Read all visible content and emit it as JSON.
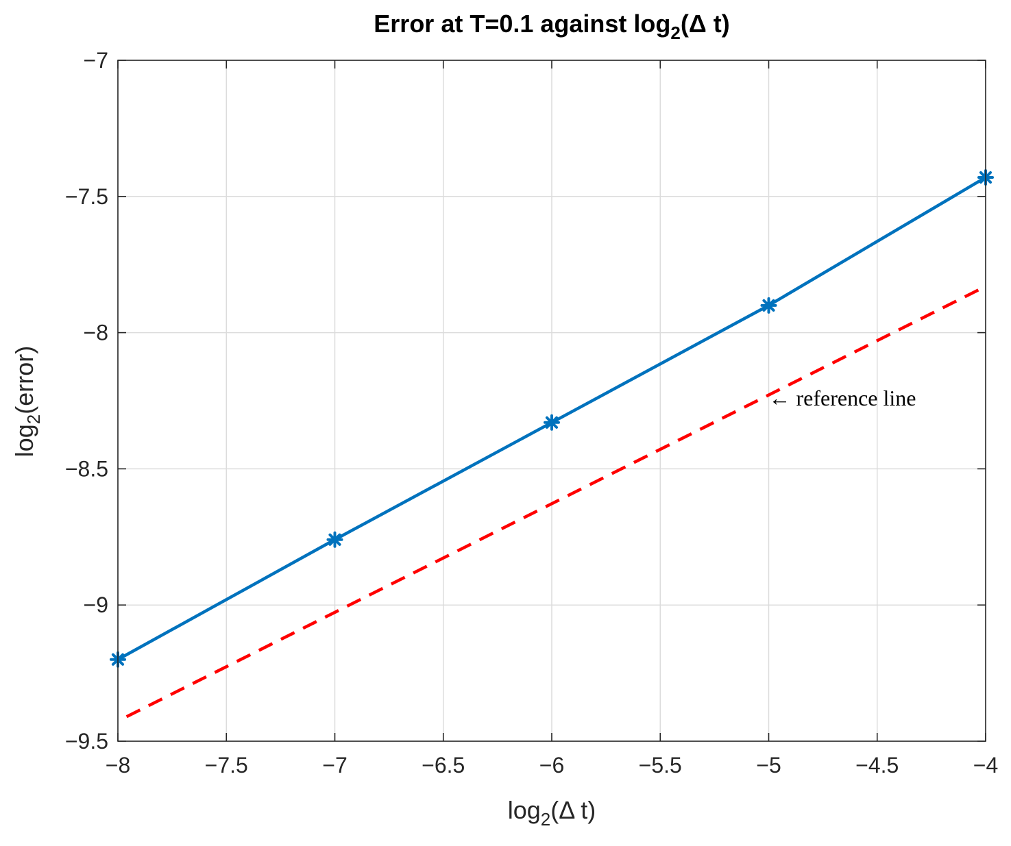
{
  "chart_data": {
    "type": "line",
    "title": {
      "main": "Error at T=0.1 against log",
      "sub": "2",
      "tail": "(Δ t)"
    },
    "xlabel": {
      "main": "log",
      "sub": "2",
      "tail": "(Δ t)"
    },
    "ylabel": {
      "main": "log",
      "sub": "2",
      "tail": "(error)"
    },
    "xlim": [
      -8,
      -4
    ],
    "ylim": [
      -9.5,
      -7
    ],
    "xticks": [
      -8,
      -7.5,
      -7,
      -6.5,
      -6,
      -5.5,
      -5,
      -4.5,
      -4
    ],
    "xtick_labels": [
      "−8",
      "−7.5",
      "−7",
      "−6.5",
      "−6",
      "−5.5",
      "−5",
      "−4.5",
      "−4"
    ],
    "yticks": [
      -9.5,
      -9,
      -8.5,
      -8,
      -7.5,
      -7
    ],
    "ytick_labels": [
      "−9.5",
      "−9",
      "−8.5",
      "−8",
      "−7.5",
      "−7"
    ],
    "grid": true,
    "series": [
      {
        "x": [
          -8,
          -7,
          -6,
          -5,
          -4
        ],
        "y": [
          -9.2,
          -8.76,
          -8.33,
          -7.9,
          -7.43
        ],
        "color": "#0072BD",
        "style": "solid",
        "marker": "asterisk"
      },
      {
        "x": [
          -7.96,
          -4
        ],
        "y": [
          -9.41,
          -7.83
        ],
        "color": "#FF0000",
        "style": "dashed",
        "marker": "none"
      }
    ],
    "annotations": [
      {
        "text": "← reference line",
        "x": -5,
        "y": -8.24
      }
    ]
  }
}
